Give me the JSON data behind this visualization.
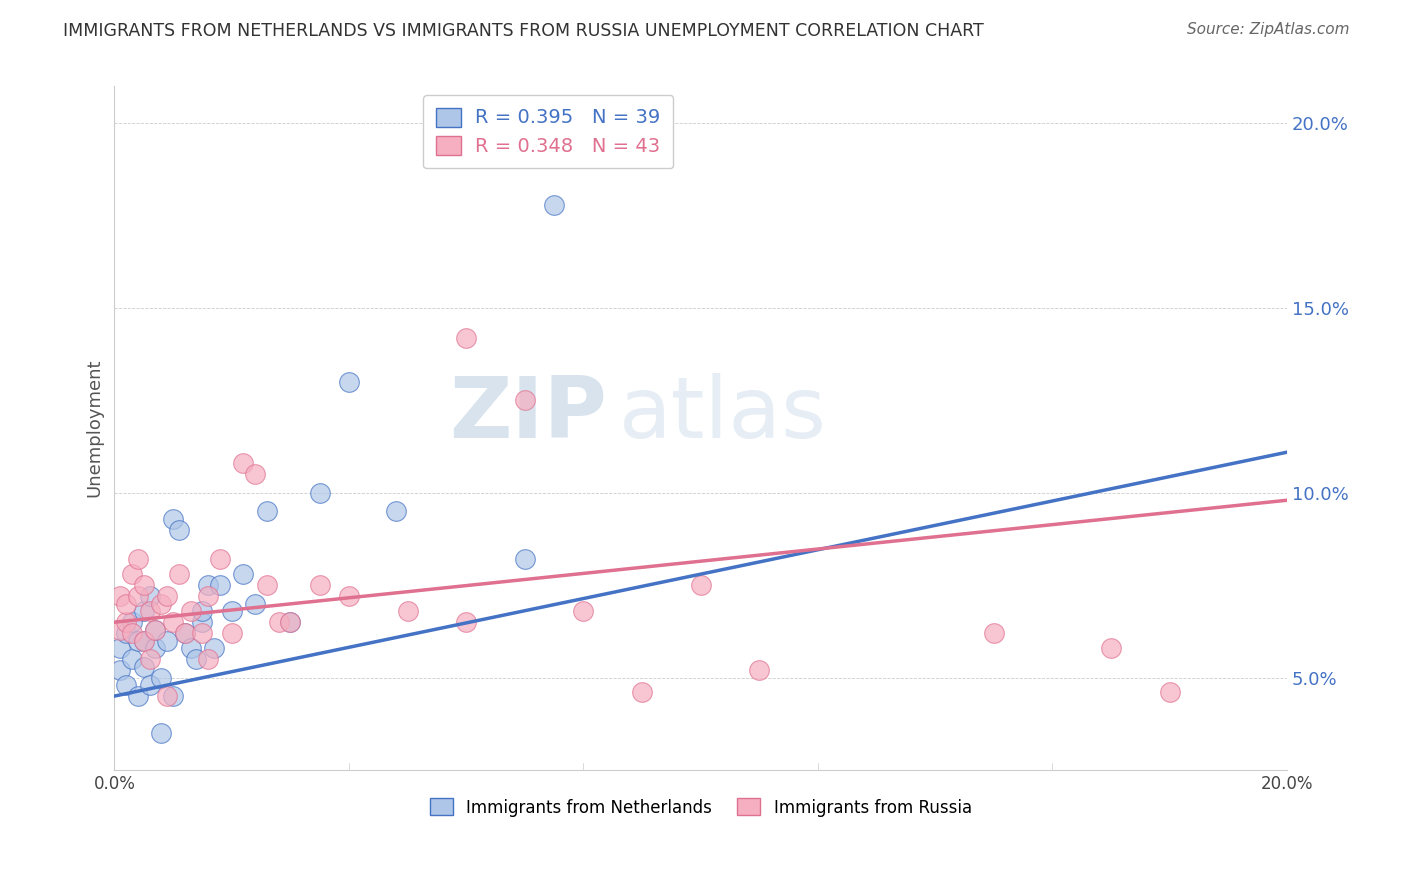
{
  "title": "IMMIGRANTS FROM NETHERLANDS VS IMMIGRANTS FROM RUSSIA UNEMPLOYMENT CORRELATION CHART",
  "source": "Source: ZipAtlas.com",
  "ylabel": "Unemployment",
  "xmin": 0.0,
  "xmax": 0.2,
  "ymin": 0.025,
  "ymax": 0.21,
  "yticks": [
    0.05,
    0.1,
    0.15,
    0.2
  ],
  "ytick_labels": [
    "5.0%",
    "10.0%",
    "15.0%",
    "20.0%"
  ],
  "xticks": [
    0.0,
    0.04,
    0.08,
    0.12,
    0.16,
    0.2
  ],
  "color_netherlands": "#aec6e8",
  "color_russia": "#f5afc0",
  "color_netherlands_line": "#4472c4",
  "color_russia_line": "#e07090",
  "watermark_zip": "ZIP",
  "watermark_atlas": "atlas",
  "nl_intercept": 0.045,
  "nl_slope": 0.33,
  "ru_intercept": 0.065,
  "ru_slope": 0.165,
  "netherlands_x": [
    0.001,
    0.001,
    0.002,
    0.002,
    0.003,
    0.003,
    0.004,
    0.004,
    0.005,
    0.005,
    0.005,
    0.006,
    0.006,
    0.007,
    0.007,
    0.008,
    0.008,
    0.009,
    0.01,
    0.01,
    0.011,
    0.012,
    0.013,
    0.014,
    0.015,
    0.015,
    0.016,
    0.017,
    0.018,
    0.02,
    0.022,
    0.024,
    0.026,
    0.03,
    0.035,
    0.04,
    0.048,
    0.07,
    0.075
  ],
  "netherlands_y": [
    0.058,
    0.052,
    0.062,
    0.048,
    0.055,
    0.065,
    0.06,
    0.045,
    0.068,
    0.053,
    0.06,
    0.072,
    0.048,
    0.058,
    0.063,
    0.035,
    0.05,
    0.06,
    0.045,
    0.093,
    0.09,
    0.062,
    0.058,
    0.055,
    0.065,
    0.068,
    0.075,
    0.058,
    0.075,
    0.068,
    0.078,
    0.07,
    0.095,
    0.065,
    0.1,
    0.13,
    0.095,
    0.082,
    0.178
  ],
  "russia_x": [
    0.001,
    0.001,
    0.002,
    0.002,
    0.003,
    0.003,
    0.004,
    0.004,
    0.005,
    0.005,
    0.006,
    0.006,
    0.007,
    0.008,
    0.009,
    0.01,
    0.011,
    0.012,
    0.013,
    0.015,
    0.016,
    0.018,
    0.02,
    0.022,
    0.024,
    0.026,
    0.028,
    0.03,
    0.035,
    0.04,
    0.05,
    0.06,
    0.07,
    0.08,
    0.09,
    0.1,
    0.11,
    0.15,
    0.17,
    0.18,
    0.016,
    0.009,
    0.06
  ],
  "russia_y": [
    0.063,
    0.072,
    0.065,
    0.07,
    0.062,
    0.078,
    0.072,
    0.082,
    0.06,
    0.075,
    0.055,
    0.068,
    0.063,
    0.07,
    0.072,
    0.065,
    0.078,
    0.062,
    0.068,
    0.062,
    0.072,
    0.082,
    0.062,
    0.108,
    0.105,
    0.075,
    0.065,
    0.065,
    0.075,
    0.072,
    0.068,
    0.142,
    0.125,
    0.068,
    0.046,
    0.075,
    0.052,
    0.062,
    0.058,
    0.046,
    0.055,
    0.045,
    0.065
  ]
}
